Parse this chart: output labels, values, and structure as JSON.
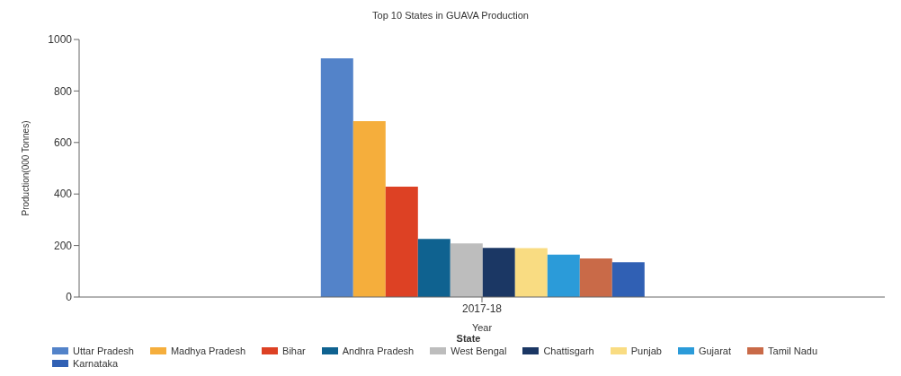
{
  "chart_data": {
    "type": "bar",
    "title": "Top 10 States in GUAVA Production",
    "xlabel": "Year",
    "ylabel": "Production(000 Tonnes)",
    "legend_title": "State",
    "categories": [
      "2017-18"
    ],
    "series": [
      {
        "name": "Uttar Pradesh",
        "color": "#5383c9",
        "values": [
          927
        ]
      },
      {
        "name": "Madhya Pradesh",
        "color": "#f5ae3c",
        "values": [
          683
        ]
      },
      {
        "name": "Bihar",
        "color": "#dd4124",
        "values": [
          429
        ]
      },
      {
        "name": "Andhra Pradesh",
        "color": "#0f6290",
        "values": [
          226
        ]
      },
      {
        "name": "West Bengal",
        "color": "#bdbdbd",
        "values": [
          208
        ]
      },
      {
        "name": "Chattisgarh",
        "color": "#1b3764",
        "values": [
          191
        ]
      },
      {
        "name": "Punjab",
        "color": "#f9dc82",
        "values": [
          190
        ]
      },
      {
        "name": "Gujarat",
        "color": "#2b9bd9",
        "values": [
          165
        ]
      },
      {
        "name": "Tamil Nadu",
        "color": "#c96a48",
        "values": [
          150
        ]
      },
      {
        "name": "Karnataka",
        "color": "#3060b4",
        "values": [
          135
        ]
      }
    ],
    "ylim": [
      0,
      1000
    ],
    "yticks": [
      0,
      200,
      400,
      600,
      800,
      1000
    ],
    "grid": false,
    "legend": "bottom"
  }
}
